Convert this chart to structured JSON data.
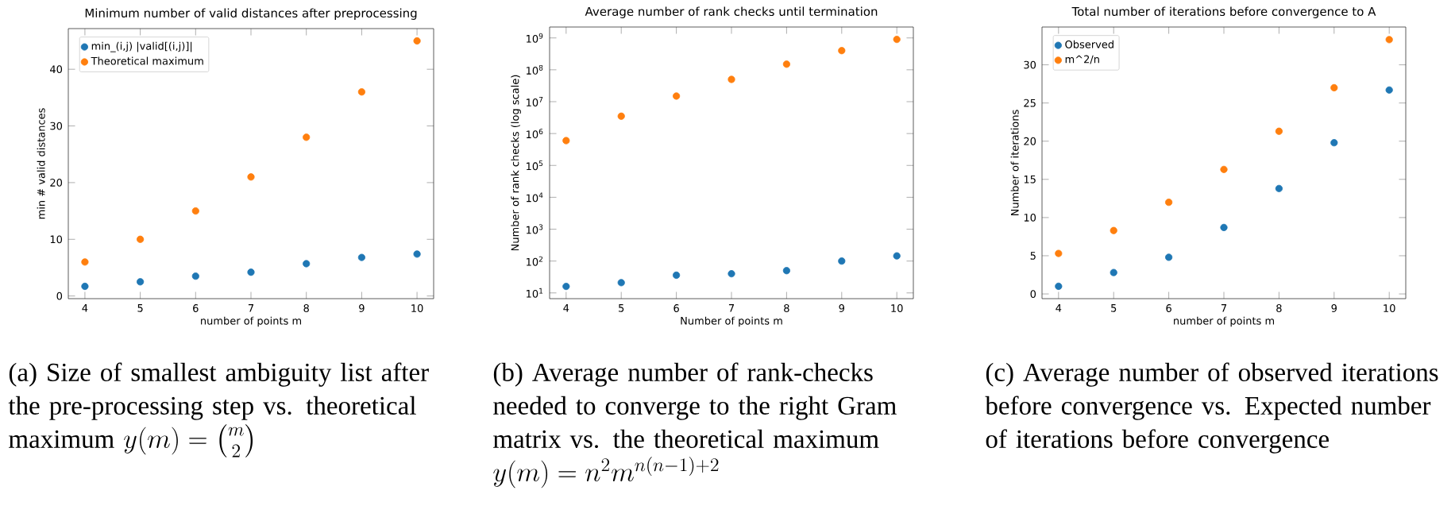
{
  "chart_data": [
    {
      "type": "scatter",
      "title": "Minimum number of valid distances after preprocessing",
      "xlabel": "number of points m",
      "ylabel": "min # valid distances",
      "x": [
        4,
        5,
        6,
        7,
        8,
        9,
        10
      ],
      "xlim": [
        3.7,
        10.3
      ],
      "xticks": [
        4,
        5,
        6,
        7,
        8,
        9,
        10
      ],
      "ylim": [
        -0.47,
        47.17
      ],
      "yticks": [
        0,
        10,
        20,
        30,
        40
      ],
      "legend": "top left",
      "series": [
        {
          "name": "min_(i,j) |valid[(i,j)]|",
          "color": "#1f77b4",
          "values": [
            1.7,
            2.5,
            3.5,
            4.2,
            5.7,
            6.8,
            7.4
          ]
        },
        {
          "name": "Theoretical maximum",
          "color": "#ff7f0e",
          "values": [
            6,
            10,
            15,
            21,
            28,
            36,
            45
          ]
        }
      ],
      "annotations": [
        "(a) Size of smallest ambiguity list after the pre-processing step vs. theoretical maximum",
        "y(m) = \\binom{m}{2}"
      ]
    },
    {
      "type": "scatter",
      "title": "Average number of rank checks until termination",
      "xlabel": "Number of points m",
      "ylabel": "Number of rank checks (log scale)",
      "x": [
        4,
        5,
        6,
        7,
        8,
        9,
        10
      ],
      "xlim": [
        3.7,
        10.3
      ],
      "xticks": [
        4,
        5,
        6,
        7,
        8,
        9,
        10
      ],
      "log": "y",
      "ylim": [
        6.6,
        2200000000
      ],
      "yticks": [
        {
          "value": 10,
          "label": "10$^{1}$"
        },
        {
          "value": 100,
          "label": "10$^{2}$"
        },
        {
          "value": 1000,
          "label": "10$^{3}$"
        },
        {
          "value": 10000,
          "label": "10$^{4}$"
        },
        {
          "value": 100000,
          "label": "10$^{5}$"
        },
        {
          "value": 1000000,
          "label": "10$^{6}$"
        },
        {
          "value": 10000000,
          "label": "10$^{7}$"
        },
        {
          "value": 100000000,
          "label": "10$^{8}$"
        },
        {
          "value": 1000000000,
          "label": "10$^{9}$"
        }
      ],
      "series": [
        {
          "color": "#1f77b4",
          "values": [
            16,
            21,
            36,
            40,
            50,
            100,
            145
          ]
        },
        {
          "color": "#ff7f0e",
          "values": [
            600000,
            3500000,
            15000000,
            50000000,
            150000000,
            400000000,
            900000000
          ]
        }
      ],
      "annotations": [
        "(b) Average number of rank-checks needed to converge to the right Gram matrix vs. the theoretical maximum",
        "y(m) = n^2 m^{n(n-1)+2}"
      ]
    },
    {
      "type": "scatter",
      "title": "Total number of iterations before convergence to A",
      "xlabel": "number of points m",
      "ylabel": "Number of iterations",
      "x": [
        4,
        5,
        6,
        7,
        8,
        9,
        10
      ],
      "xlim": [
        3.7,
        10.3
      ],
      "xticks": [
        4,
        5,
        6,
        7,
        8,
        9,
        10
      ],
      "ylim": [
        -0.62,
        34.95
      ],
      "yticks": [
        0,
        5,
        10,
        15,
        20,
        25,
        30
      ],
      "legend": "top left",
      "series": [
        {
          "name": "Observed",
          "color": "#1f77b4",
          "values": [
            1.0,
            2.8,
            4.8,
            8.7,
            13.8,
            19.8,
            26.7
          ]
        },
        {
          "name": "m^2/n",
          "color": "#ff7f0e",
          "values": [
            5.3,
            8.3,
            12,
            16.3,
            21.3,
            27,
            33.3
          ]
        }
      ],
      "annotations": [
        "(c) Average number of observed iterations before convergence vs. Expected number of iterations before convergence"
      ]
    }
  ]
}
